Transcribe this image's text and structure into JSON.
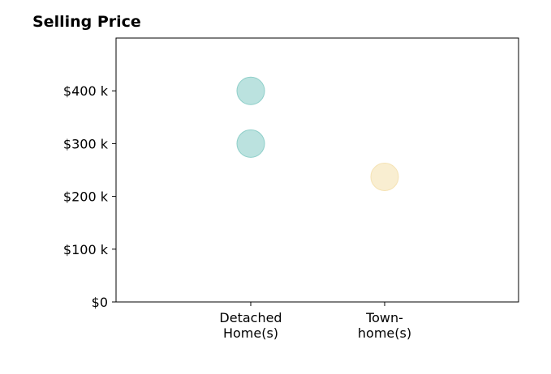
{
  "chart_data": {
    "type": "scatter",
    "title": "Selling Price",
    "xlabel": "",
    "ylabel": "",
    "categories": [
      [
        "Detached",
        "Home(s)"
      ],
      [
        "Town-",
        "home(s)"
      ]
    ],
    "ylim": [
      0,
      500
    ],
    "yticks": [
      {
        "value": 0,
        "label": "$0"
      },
      {
        "value": 100,
        "label": "$100 k"
      },
      {
        "value": 200,
        "label": "$200 k"
      },
      {
        "value": 300,
        "label": "$300 k"
      },
      {
        "value": 400,
        "label": "$400 k"
      }
    ],
    "grid": false,
    "series": [
      {
        "category": 0,
        "color": "#8ecfc9",
        "points": [
          400,
          300
        ]
      },
      {
        "category": 1,
        "color": "#f5e2b3",
        "points": [
          237
        ]
      }
    ]
  }
}
